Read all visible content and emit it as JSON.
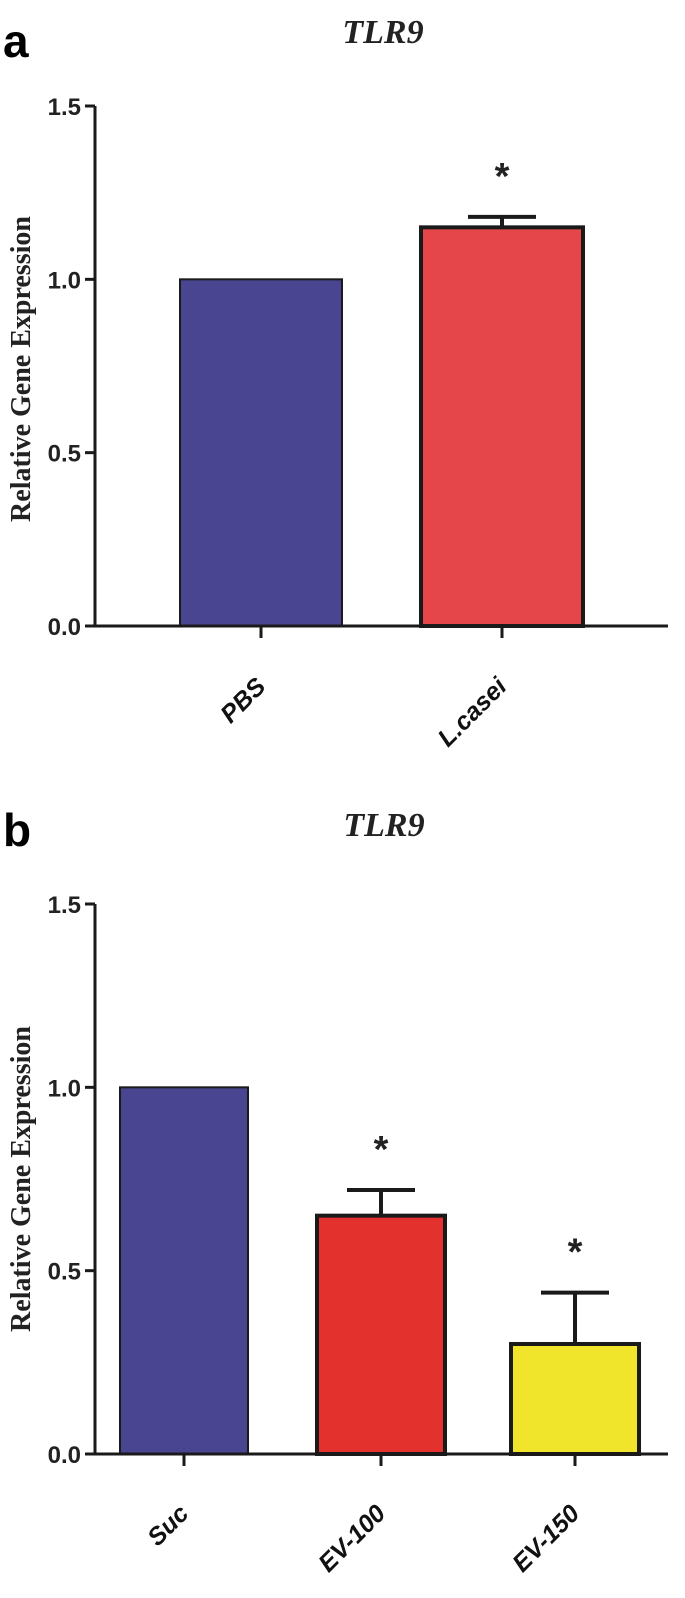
{
  "chart_data": [
    {
      "panel": "a",
      "type": "bar",
      "title": "TLR9",
      "ylabel": "Relative Gene Expression",
      "xlabel": "",
      "ylim": [
        0,
        1.5
      ],
      "yticks": [
        0.0,
        0.5,
        1.0,
        1.5
      ],
      "ytick_labels": [
        "0.0",
        "0.5",
        "1.0",
        "1.5"
      ],
      "categories": [
        "PBS",
        "L.casei"
      ],
      "values": [
        1.0,
        1.15
      ],
      "errors": [
        0,
        0.03
      ],
      "colors": [
        "#4a4590",
        "#e5464a"
      ],
      "annotations": [
        "",
        "*"
      ],
      "grid": false
    },
    {
      "panel": "b",
      "type": "bar",
      "title": "TLR9",
      "ylabel": "Relative Gene Expression",
      "xlabel": "",
      "ylim": [
        0,
        1.5
      ],
      "yticks": [
        0.0,
        0.5,
        1.0,
        1.5
      ],
      "ytick_labels": [
        "0.0",
        "0.5",
        "1.0",
        "1.5"
      ],
      "categories": [
        "Suc",
        "EV-100",
        "EV-150"
      ],
      "values": [
        1.0,
        0.65,
        0.3
      ],
      "errors": [
        0,
        0.07,
        0.14
      ],
      "colors": [
        "#4a4590",
        "#e3312e",
        "#f0e52a"
      ],
      "annotations": [
        "",
        "*",
        "*"
      ],
      "grid": false
    }
  ]
}
